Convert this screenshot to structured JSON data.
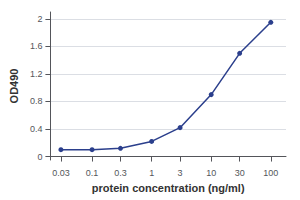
{
  "chart_data": {
    "type": "line",
    "x": [
      0.03,
      0.1,
      0.3,
      1,
      3,
      10,
      30,
      100
    ],
    "values": [
      0.1,
      0.1,
      0.12,
      0.22,
      0.42,
      0.9,
      1.5,
      1.95
    ],
    "color": "#2B3F8C",
    "marker": "circle",
    "log": "x",
    "xlim": [
      0.02,
      180
    ],
    "xticks": [
      0.03,
      0.1,
      0.3,
      1,
      3,
      10,
      30,
      100
    ],
    "ylim": [
      -0.05,
      2.1
    ],
    "yticks": [
      0,
      0.4,
      0.8,
      1.2,
      1.6,
      2
    ],
    "xlabel": "protein concentration (ng/ml)",
    "ylabel": "OD490",
    "grid": "y"
  }
}
